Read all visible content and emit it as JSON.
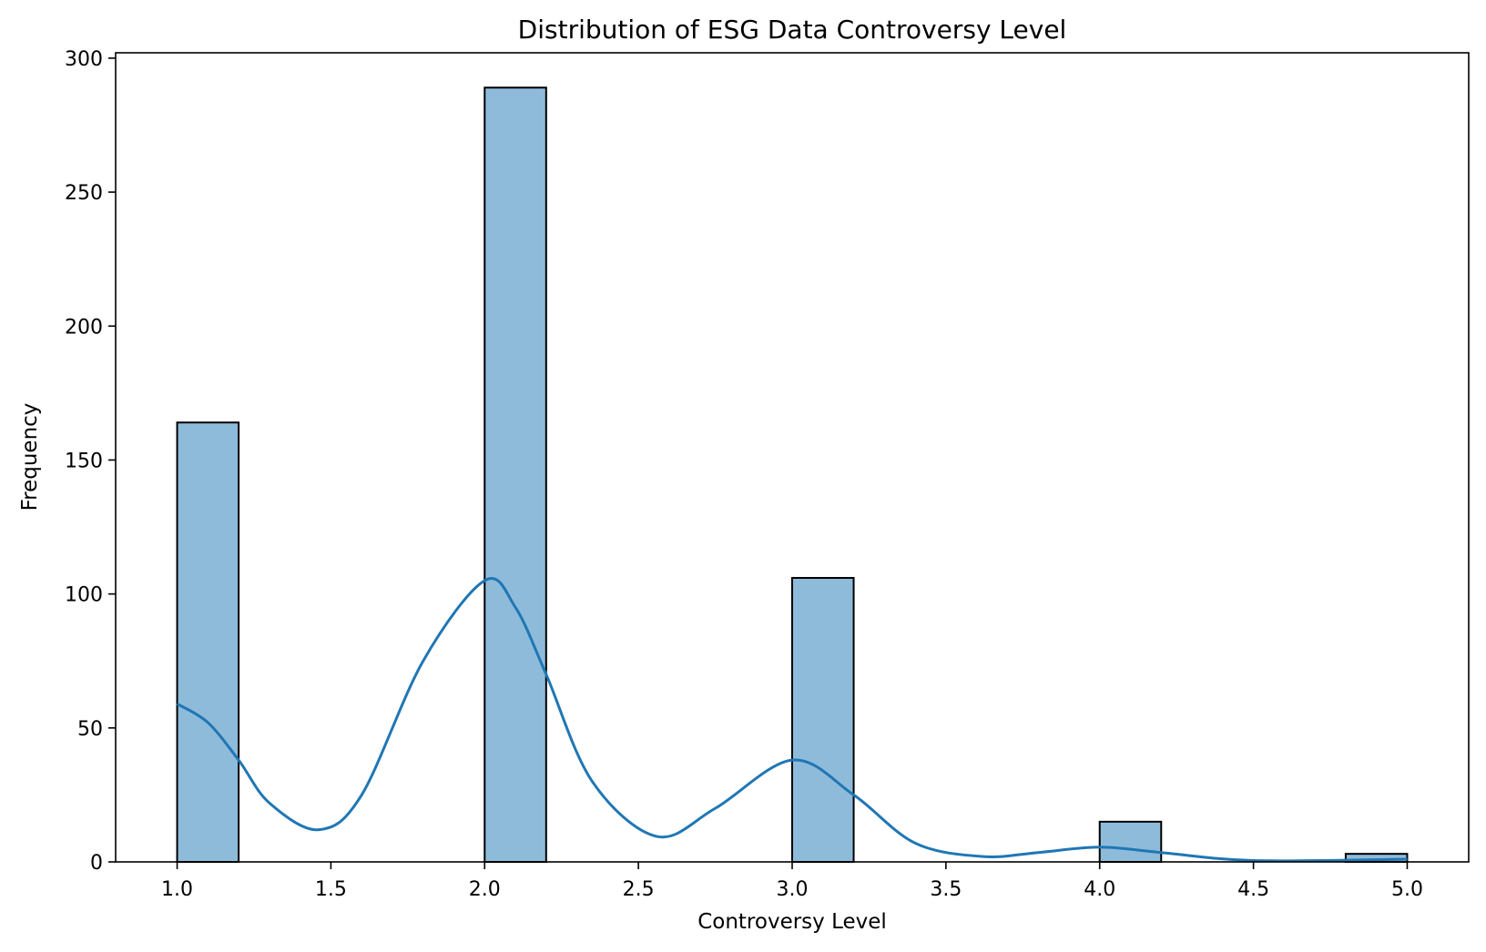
{
  "chart_data": {
    "type": "bar",
    "subtype": "histogram-with-kde",
    "title": "Distribution of ESG Data Controversy Level",
    "xlabel": "Controversy Level",
    "ylabel": "Frequency",
    "xlim": [
      0.8,
      5.2
    ],
    "ylim": [
      0,
      302
    ],
    "xticks": [
      "1.0",
      "1.5",
      "2.0",
      "2.5",
      "3.0",
      "3.5",
      "4.0",
      "4.5",
      "5.0"
    ],
    "yticks": [
      "0",
      "50",
      "100",
      "150",
      "200",
      "250",
      "300"
    ],
    "grid": false,
    "legend": "none",
    "bar_color": "#8fbbdb",
    "bar_edge_color": "#000000",
    "kde_color": "#1f77b4",
    "bins": [
      {
        "x0": 1.0,
        "x1": 1.2,
        "count": 164
      },
      {
        "x0": 2.0,
        "x1": 2.2,
        "count": 289
      },
      {
        "x0": 3.0,
        "x1": 3.2,
        "count": 106
      },
      {
        "x0": 4.0,
        "x1": 4.2,
        "count": 15
      },
      {
        "x0": 4.8,
        "x1": 5.0,
        "count": 3
      }
    ],
    "kde": {
      "x": [
        1.0,
        1.1,
        1.2,
        1.3,
        1.46,
        1.6,
        1.8,
        2.0,
        2.1,
        2.2,
        2.35,
        2.56,
        2.75,
        3.0,
        3.2,
        3.4,
        3.62,
        3.8,
        4.0,
        4.2,
        4.5,
        5.0
      ],
      "y": [
        59,
        52,
        38,
        22,
        12,
        25,
        75,
        105,
        95,
        70,
        30,
        9.5,
        20,
        38,
        25,
        7,
        2,
        3.5,
        5.5,
        3.5,
        0.5,
        1
      ]
    }
  }
}
